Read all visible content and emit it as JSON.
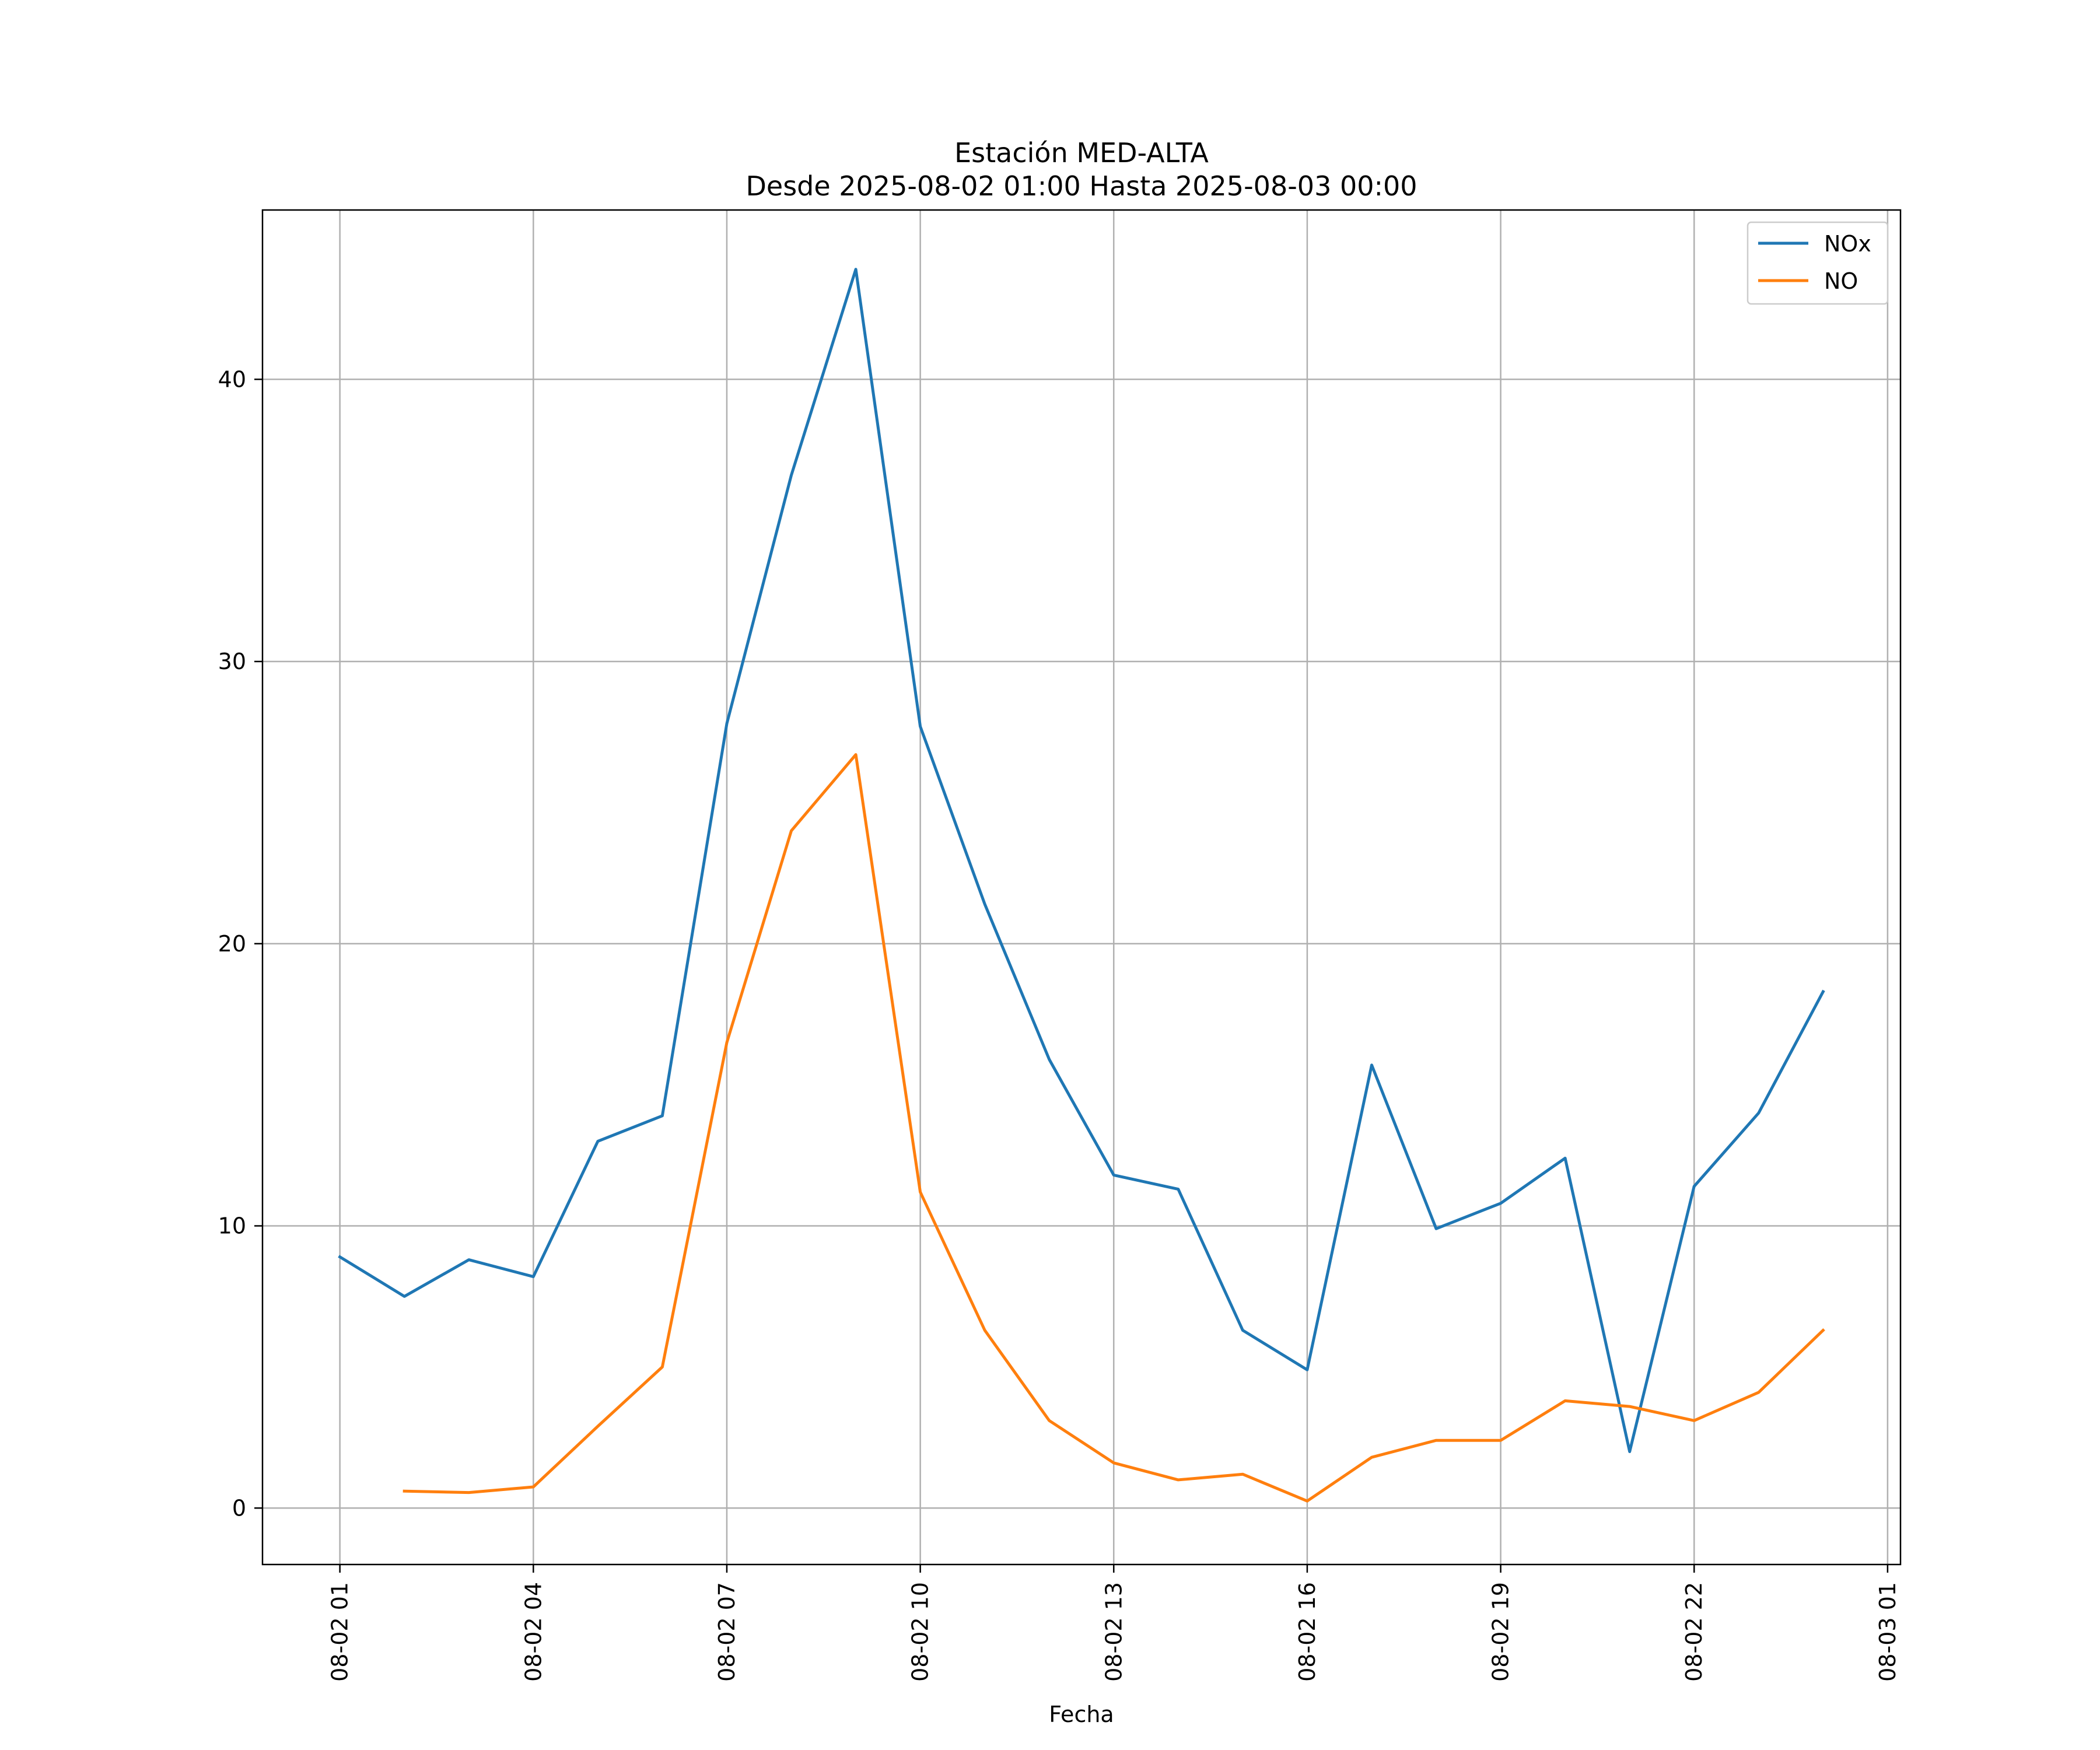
{
  "chart_data": {
    "type": "line",
    "title": "Estación MED-ALTA",
    "subtitle": "Desde 2025-08-02 01:00 Hasta 2025-08-03 00:00",
    "xlabel": "Fecha",
    "ylabel": "",
    "x_hours": [
      1,
      2,
      3,
      4,
      5,
      6,
      7,
      8,
      9,
      10,
      11,
      12,
      13,
      14,
      15,
      16,
      17,
      18,
      19,
      20,
      21,
      22,
      23,
      24
    ],
    "xlim": [
      -0.2,
      25.2
    ],
    "ylim": [
      -2,
      46
    ],
    "x_ticks": [
      1,
      4,
      7,
      10,
      13,
      16,
      19,
      22,
      25
    ],
    "x_tick_labels": [
      "08-02 01",
      "08-02 04",
      "08-02 07",
      "08-02 10",
      "08-02 13",
      "08-02 16",
      "08-02 19",
      "08-02 22",
      "08-03 01"
    ],
    "y_ticks": [
      0,
      10,
      20,
      30,
      40
    ],
    "y_tick_labels": [
      "0",
      "10",
      "20",
      "30",
      "40"
    ],
    "grid": true,
    "legend_position": "upper-right",
    "series": [
      {
        "name": "NOx",
        "color": "#1f77b4",
        "values": [
          8.9,
          7.5,
          8.8,
          8.2,
          13.0,
          13.9,
          27.8,
          36.6,
          43.9,
          27.7,
          21.4,
          15.9,
          11.8,
          11.3,
          6.3,
          4.9,
          15.7,
          9.9,
          10.8,
          12.4,
          2.0,
          11.4,
          14.0,
          18.3
        ]
      },
      {
        "name": "NO",
        "color": "#ff7f0e",
        "values": [
          null,
          0.6,
          0.55,
          0.75,
          2.9,
          5.0,
          16.5,
          24.0,
          26.7,
          11.2,
          6.3,
          3.1,
          1.6,
          1.0,
          1.2,
          0.25,
          1.8,
          2.4,
          2.4,
          3.8,
          3.6,
          3.1,
          4.1,
          6.3
        ]
      }
    ]
  }
}
